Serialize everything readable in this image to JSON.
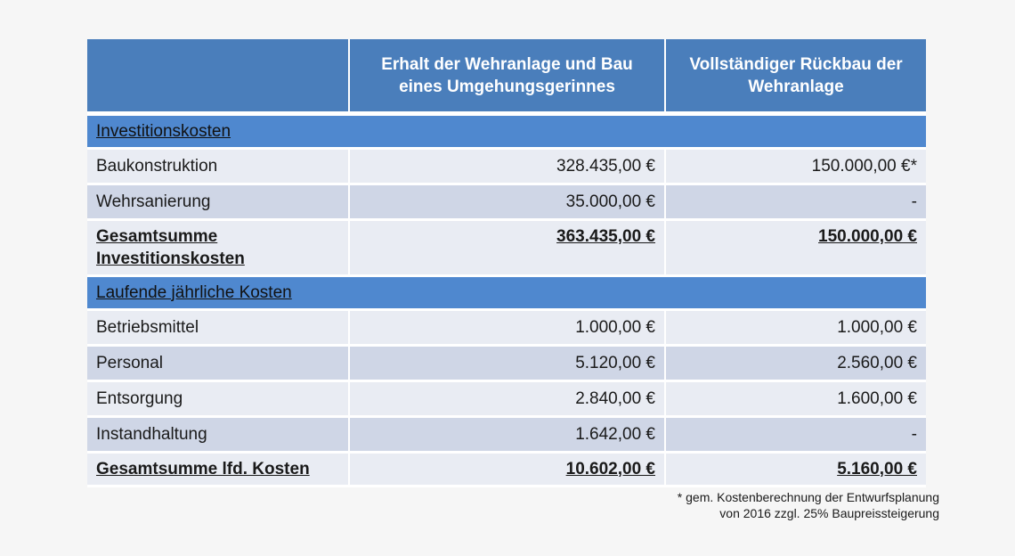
{
  "table": {
    "headers": [
      "",
      "Erhalt der Wehranlage und Bau eines Umgehungsgerinnes",
      "Vollständiger Rückbau der Wehranlage"
    ],
    "sections": [
      {
        "title": "Investitionskosten",
        "rows": [
          {
            "label": "Baukonstruktion",
            "option_a": "328.435,00 €",
            "option_b": "150.000,00 €*"
          },
          {
            "label": "Wehrsanierung",
            "option_a": "35.000,00 €",
            "option_b": "-"
          }
        ],
        "total": {
          "label": "Gesamtsumme Investitionskosten",
          "option_a": "363.435,00 €",
          "option_b": "150.000,00 €"
        }
      },
      {
        "title": "Laufende jährliche Kosten",
        "rows": [
          {
            "label": "Betriebsmittel",
            "option_a": "1.000,00 €",
            "option_b": "1.000,00 €"
          },
          {
            "label": "Personal",
            "option_a": "5.120,00 €",
            "option_b": "2.560,00 €"
          },
          {
            "label": "Entsorgung",
            "option_a": "2.840,00 €",
            "option_b": "1.600,00 €"
          },
          {
            "label": "Instandhaltung",
            "option_a": "1.642,00 €",
            "option_b": "-"
          }
        ],
        "total": {
          "label": "Gesamtsumme lfd. Kosten",
          "option_a": "10.602,00 €",
          "option_b": "5.160,00 €"
        }
      }
    ]
  },
  "footnote": {
    "line1": "* gem. Kostenberechnung der Entwurfsplanung",
    "line2": "von 2016 zzgl. 25% Baupreissteigerung"
  }
}
